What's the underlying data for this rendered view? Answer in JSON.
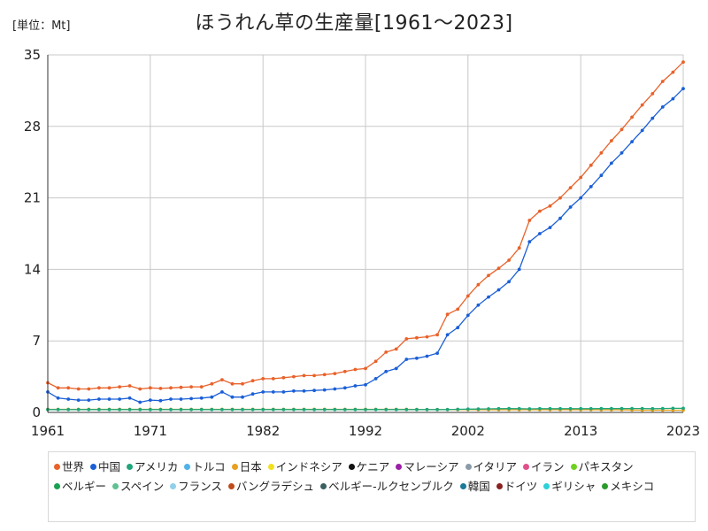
{
  "unit_label": "[単位：Mt]",
  "chart_data": {
    "type": "line",
    "title": "ほうれん草の生産量[1961～2023]",
    "xlim": [
      1961,
      2023
    ],
    "ylim": [
      0,
      35
    ],
    "x_ticks": [
      "1961",
      "1971",
      "1982",
      "1992",
      "2002",
      "2013",
      "2023"
    ],
    "y_ticks": [
      "0",
      "7",
      "14",
      "21",
      "28",
      "35"
    ],
    "grid": true,
    "legend_position": "bottom",
    "series": [
      {
        "name": "世界",
        "color": "#e8622a",
        "values": [
          2.9,
          2.4,
          2.4,
          2.3,
          2.3,
          2.4,
          2.4,
          2.5,
          2.6,
          2.3,
          2.4,
          2.35,
          2.4,
          2.45,
          2.5,
          2.5,
          2.8,
          3.2,
          2.8,
          2.8,
          3.1,
          3.3,
          3.3,
          3.4,
          3.5,
          3.6,
          3.6,
          3.7,
          3.8,
          4.0,
          4.2,
          4.3,
          5.0,
          5.9,
          6.2,
          7.2,
          7.3,
          7.4,
          7.6,
          9.6,
          10.1,
          11.4,
          12.5,
          13.4,
          14.1,
          14.9,
          16.1,
          18.8,
          19.7,
          20.2,
          21.0,
          22.0,
          23.0,
          24.2,
          25.4,
          26.6,
          27.7,
          28.9,
          30.1,
          31.2,
          32.4,
          33.3,
          34.3
        ]
      },
      {
        "name": "中国",
        "color": "#1a5fd6",
        "values": [
          2.0,
          1.4,
          1.3,
          1.2,
          1.2,
          1.3,
          1.3,
          1.3,
          1.4,
          1.0,
          1.2,
          1.15,
          1.3,
          1.3,
          1.35,
          1.4,
          1.5,
          2.0,
          1.5,
          1.5,
          1.8,
          2.0,
          2.0,
          2.0,
          2.1,
          2.1,
          2.15,
          2.2,
          2.3,
          2.4,
          2.6,
          2.7,
          3.3,
          4.0,
          4.3,
          5.2,
          5.3,
          5.5,
          5.8,
          7.6,
          8.3,
          9.5,
          10.5,
          11.3,
          12.0,
          12.8,
          14.0,
          16.7,
          17.5,
          18.1,
          19.0,
          20.1,
          21.0,
          22.1,
          23.2,
          24.4,
          25.4,
          26.5,
          27.6,
          28.8,
          29.9,
          30.7,
          31.7
        ]
      },
      {
        "name": "アメリカ",
        "color": "#1fa67a",
        "values": [
          0.28,
          0.28,
          0.28,
          0.28,
          0.28,
          0.28,
          0.28,
          0.28,
          0.28,
          0.28,
          0.28,
          0.28,
          0.28,
          0.28,
          0.28,
          0.28,
          0.28,
          0.28,
          0.28,
          0.28,
          0.28,
          0.28,
          0.28,
          0.28,
          0.28,
          0.28,
          0.28,
          0.28,
          0.28,
          0.28,
          0.28,
          0.28,
          0.28,
          0.28,
          0.28,
          0.28,
          0.28,
          0.28,
          0.28,
          0.28,
          0.3,
          0.32,
          0.33,
          0.35,
          0.36,
          0.37,
          0.36,
          0.35,
          0.36,
          0.36,
          0.36,
          0.36,
          0.36,
          0.36,
          0.37,
          0.37,
          0.37,
          0.38,
          0.38,
          0.36,
          0.38,
          0.4,
          0.4
        ]
      },
      {
        "name": "トルコ",
        "color": "#4fb3e8",
        "values": []
      },
      {
        "name": "日本",
        "color": "#e8a020",
        "values": [
          0.3,
          0.3,
          0.3,
          0.3,
          0.3,
          0.3,
          0.3,
          0.3,
          0.3,
          0.3,
          0.3,
          0.3,
          0.3,
          0.3,
          0.3,
          0.3,
          0.3,
          0.3,
          0.3,
          0.3,
          0.3,
          0.3,
          0.3,
          0.3,
          0.3,
          0.3,
          0.3,
          0.3,
          0.3,
          0.3,
          0.3,
          0.3,
          0.3,
          0.3,
          0.3,
          0.3,
          0.29,
          0.28,
          0.28,
          0.28,
          0.27,
          0.27,
          0.26,
          0.26,
          0.26,
          0.26,
          0.26,
          0.26,
          0.26,
          0.26,
          0.26,
          0.26,
          0.26,
          0.26,
          0.25,
          0.25,
          0.25,
          0.23,
          0.22,
          0.22,
          0.22,
          0.22,
          0.22
        ]
      },
      {
        "name": "インドネシア",
        "color": "#f2e020",
        "values": []
      },
      {
        "name": "ケニア",
        "color": "#111111",
        "values": []
      },
      {
        "name": "マレーシア",
        "color": "#9b1fa8",
        "values": []
      },
      {
        "name": "イタリア",
        "color": "#8a9aa8",
        "values": []
      },
      {
        "name": "イラン",
        "color": "#e0508a",
        "values": []
      },
      {
        "name": "パキスタン",
        "color": "#70d020",
        "values": []
      },
      {
        "name": "ベルギー",
        "color": "#18a050",
        "values": []
      },
      {
        "name": "スペイン",
        "color": "#60c090",
        "values": []
      },
      {
        "name": "フランス",
        "color": "#90d0e8",
        "values": []
      },
      {
        "name": "バングラデシュ",
        "color": "#c04a1a",
        "values": []
      },
      {
        "name": "ベルギー-ルクセンブルク",
        "color": "#3a6060",
        "values": []
      },
      {
        "name": "韓国",
        "color": "#1a7a9a",
        "values": []
      },
      {
        "name": "ドイツ",
        "color": "#8a2020",
        "values": []
      },
      {
        "name": "ギリシャ",
        "color": "#30d0d8",
        "values": []
      },
      {
        "name": "メキシコ",
        "color": "#2a9a2a",
        "values": []
      }
    ]
  }
}
